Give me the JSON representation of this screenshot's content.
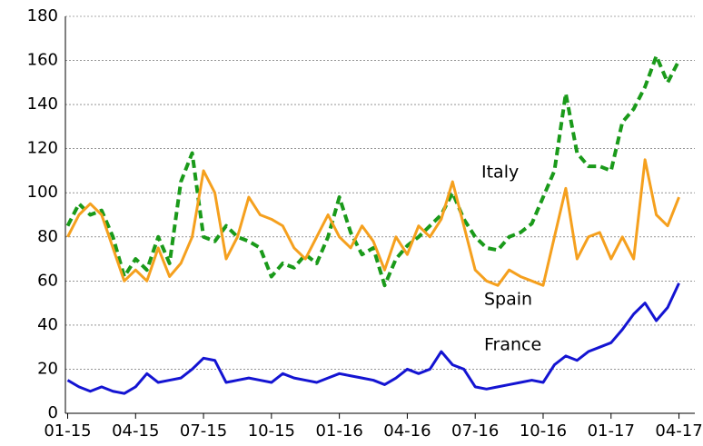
{
  "chart_data": {
    "type": "line",
    "x": [
      0,
      0.5,
      1,
      1.5,
      2,
      2.5,
      3,
      3.5,
      4,
      4.5,
      5,
      5.5,
      6,
      6.5,
      7,
      7.5,
      8,
      8.5,
      9,
      9.5,
      10,
      10.5,
      11,
      11.5,
      12,
      12.5,
      13,
      13.5,
      14,
      14.5,
      15,
      15.5,
      16,
      16.5,
      17,
      17.5,
      18,
      18.5,
      19,
      19.5,
      20,
      20.5,
      21,
      21.5,
      22,
      22.5,
      23,
      23.5,
      24,
      24.5,
      25,
      25.5,
      26,
      26.5,
      27
    ],
    "series": [
      {
        "name": "Italy",
        "color": "#1a9a1a",
        "dash": true,
        "values": [
          85,
          95,
          90,
          92,
          80,
          62,
          70,
          65,
          80,
          68,
          105,
          118,
          80,
          78,
          85,
          80,
          78,
          75,
          62,
          68,
          66,
          72,
          68,
          80,
          98,
          82,
          72,
          75,
          58,
          70,
          76,
          80,
          85,
          90,
          100,
          88,
          80,
          75,
          74,
          80,
          82,
          86,
          98,
          110,
          145,
          118,
          112,
          112,
          110,
          132,
          138,
          148,
          162,
          150,
          160
        ]
      },
      {
        "name": "Spain",
        "color": "#f5a01e",
        "dash": false,
        "values": [
          80,
          90,
          95,
          90,
          75,
          60,
          65,
          60,
          75,
          62,
          68,
          80,
          110,
          100,
          70,
          80,
          98,
          90,
          88,
          85,
          75,
          70,
          80,
          90,
          80,
          75,
          85,
          78,
          65,
          80,
          72,
          85,
          80,
          88,
          105,
          85,
          65,
          60,
          58,
          65,
          62,
          60,
          58,
          80,
          102,
          70,
          80,
          82,
          70,
          80,
          70,
          115,
          90,
          85,
          98
        ]
      },
      {
        "name": "France",
        "color": "#1414d2",
        "dash": false,
        "values": [
          15,
          12,
          10,
          12,
          10,
          9,
          12,
          18,
          14,
          15,
          16,
          20,
          25,
          24,
          14,
          15,
          16,
          15,
          14,
          18,
          16,
          15,
          14,
          16,
          18,
          17,
          16,
          15,
          13,
          16,
          20,
          18,
          20,
          28,
          22,
          20,
          12,
          11,
          12,
          13,
          14,
          15,
          14,
          22,
          26,
          24,
          28,
          30,
          32,
          38,
          45,
          50,
          42,
          48,
          59
        ]
      }
    ],
    "xlim": [
      -0.1,
      27.7
    ],
    "xticks": [
      {
        "value": 0,
        "label": "01-15"
      },
      {
        "value": 3,
        "label": "04-15"
      },
      {
        "value": 6,
        "label": "07-15"
      },
      {
        "value": 9,
        "label": "10-15"
      },
      {
        "value": 12,
        "label": "01-16"
      },
      {
        "value": 15,
        "label": "04-16"
      },
      {
        "value": 18,
        "label": "07-16"
      },
      {
        "value": 21,
        "label": "10-16"
      },
      {
        "value": 24,
        "label": "01-17"
      },
      {
        "value": 27,
        "label": "04-17"
      }
    ],
    "ylim": [
      0,
      180
    ],
    "yticks": [
      0,
      20,
      40,
      60,
      80,
      100,
      120,
      140,
      160,
      180
    ],
    "grid": true
  }
}
